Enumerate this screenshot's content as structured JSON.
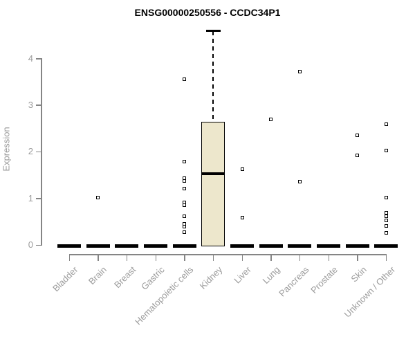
{
  "chart_data": {
    "type": "boxplot",
    "title": "ENSG00000250556 - CCDC34P1",
    "ylabel": "Expression",
    "xlabel": "",
    "ylim": [
      0,
      4.7
    ],
    "yticks": [
      0,
      1,
      2,
      3,
      4
    ],
    "grid": false,
    "legend": "none",
    "categories": [
      "Bladder",
      "Brain",
      "Breast",
      "Gastric",
      "Hematopoietic cells",
      "Kidney",
      "Liver",
      "Lung",
      "Pancreas",
      "Prostate",
      "Skin",
      "Unknown / Other"
    ],
    "boxes": [
      {
        "category": "Bladder",
        "whisker_low": 0,
        "q1": 0,
        "median": 0,
        "q3": 0,
        "whisker_high": 0,
        "outliers": []
      },
      {
        "category": "Brain",
        "whisker_low": 0,
        "q1": 0,
        "median": 0,
        "q3": 0,
        "whisker_high": 0,
        "outliers": [
          1.01
        ]
      },
      {
        "category": "Breast",
        "whisker_low": 0,
        "q1": 0,
        "median": 0,
        "q3": 0,
        "whisker_high": 0,
        "outliers": []
      },
      {
        "category": "Gastric",
        "whisker_low": 0,
        "q1": 0,
        "median": 0,
        "q3": 0,
        "whisker_high": 0,
        "outliers": []
      },
      {
        "category": "Hematopoietic cells",
        "whisker_low": 0,
        "q1": 0,
        "median": 0,
        "q3": 0,
        "whisker_high": 0,
        "outliers": [
          3.55,
          1.79,
          1.44,
          1.37,
          1.21,
          0.91,
          0.85,
          0.62,
          0.45,
          0.39,
          0.27
        ]
      },
      {
        "category": "Kidney",
        "whisker_low": 0,
        "q1": 0,
        "median": 1.53,
        "q3": 2.65,
        "whisker_high": 4.59,
        "outliers": []
      },
      {
        "category": "Liver",
        "whisker_low": 0,
        "q1": 0,
        "median": 0,
        "q3": 0,
        "whisker_high": 0,
        "outliers": [
          1.63,
          0.58
        ]
      },
      {
        "category": "Lung",
        "whisker_low": 0,
        "q1": 0,
        "median": 0,
        "q3": 0,
        "whisker_high": 0,
        "outliers": [
          2.69
        ]
      },
      {
        "category": "Pancreas",
        "whisker_low": 0,
        "q1": 0,
        "median": 0,
        "q3": 0,
        "whisker_high": 0,
        "outliers": [
          3.72,
          1.36
        ]
      },
      {
        "category": "Prostate",
        "whisker_low": 0,
        "q1": 0,
        "median": 0,
        "q3": 0,
        "whisker_high": 0,
        "outliers": []
      },
      {
        "category": "Skin",
        "whisker_low": 0,
        "q1": 0,
        "median": 0,
        "q3": 0,
        "whisker_high": 0,
        "outliers": [
          2.36,
          1.93
        ]
      },
      {
        "category": "Unknown / Other",
        "whisker_low": 0,
        "q1": 0,
        "median": 0,
        "q3": 0,
        "whisker_high": 0,
        "outliers": [
          2.59,
          2.02,
          1.01,
          0.69,
          0.62,
          0.53,
          0.41,
          0.26
        ]
      }
    ],
    "colors": {
      "box_fill": "#EDE7CC",
      "box_border": "#000000",
      "median": "#000000",
      "outlier": "#000000",
      "axis": "#858585",
      "tick_label": "#9b9b9b",
      "title": "#000000"
    }
  }
}
